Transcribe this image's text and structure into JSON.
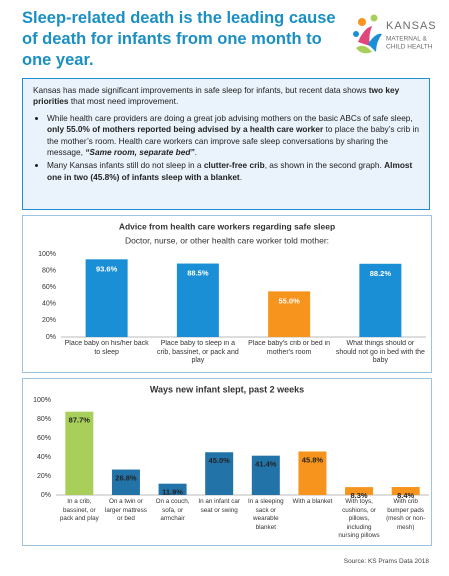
{
  "header": {
    "title": "Sleep-related death is the leading cause of death for infants from one month to one year.",
    "logo": {
      "name": "KANSAS",
      "lines": [
        "MATERNAL &",
        "CHILD HEALTH"
      ]
    }
  },
  "intro": {
    "paragraph": [
      {
        "text": "Kansas has made significant improvements in safe sleep for infants, but recent data shows "
      },
      {
        "text": "two key priorities",
        "bold": true
      },
      {
        "text": " that most need improvement."
      }
    ],
    "bullets": [
      [
        {
          "text": "While health care providers are doing a great job advising mothers on the basic ABCs of safe sleep, "
        },
        {
          "text": "only 55.0% of mothers reported being advised by a health care worker",
          "bold": true
        },
        {
          "text": " to place the baby’s crib in the mother’s room. Health care workers can improve safe sleep conversations by sharing the message, "
        },
        {
          "text": "“Same room, separate bed”",
          "bold": true,
          "italic": true
        },
        {
          "text": "."
        }
      ],
      [
        {
          "text": "Many Kansas infants still do not sleep in a "
        },
        {
          "text": "clutter-free crib",
          "bold": true
        },
        {
          "text": ", as shown in the second graph. "
        },
        {
          "text": "Almost one in two (45.8%) of infants sleep with a blanket",
          "bold": true
        },
        {
          "text": "."
        }
      ]
    ]
  },
  "chart_data": [
    {
      "type": "bar",
      "title": "Advice from health care workers regarding safe sleep",
      "subtitle": "Doctor, nurse, or other health care worker told mother:",
      "categories": [
        "Place baby on his/her back to sleep",
        "Place baby to sleep in a crib, bassinet, or pack and play",
        "Place baby's crib or bed in mother's room",
        "What things should or should not go in bed with the baby"
      ],
      "values": [
        93.6,
        88.5,
        55.0,
        88.2
      ],
      "value_labels": [
        "93.6%",
        "88.5%",
        "55.0%",
        "88.2%"
      ],
      "colors": [
        "#1b8fd6",
        "#1b8fd6",
        "#f7941d",
        "#1b8fd6"
      ],
      "ylim": [
        0,
        100
      ],
      "yticks": [
        {
          "value": 0,
          "label": "0%"
        },
        {
          "value": 20,
          "label": "20%"
        },
        {
          "value": 40,
          "label": "40%"
        },
        {
          "value": 60,
          "label": "60%"
        },
        {
          "value": 80,
          "label": "80%"
        },
        {
          "value": 100,
          "label": "100%"
        }
      ],
      "grid": false
    },
    {
      "type": "bar",
      "title": "Ways new infant slept, past 2 weeks",
      "categories": [
        "In a crib, bassinet, or pack and play",
        "On a twin or larger mattress or bed",
        "On a couch, sofa, or armchair",
        "In an infant car seat or swing",
        "In a sleeping sack or wearable blanket",
        "With a blanket",
        "With toys, cushions, or pillows, including nursing pillows",
        "With crib bumper pads (mesh or non-mesh)"
      ],
      "values": [
        87.7,
        26.8,
        11.9,
        45.0,
        41.4,
        45.8,
        8.3,
        8.4
      ],
      "value_labels": [
        "87.7%",
        "26.8%",
        "11.9%",
        "45.0%",
        "41.4%",
        "45.8%",
        "8.3%",
        "8.4%"
      ],
      "colors": [
        "#a8cf5a",
        "#2273a8",
        "#2273a8",
        "#2273a8",
        "#2273a8",
        "#f7941d",
        "#f7941d",
        "#f7941d"
      ],
      "ylim": [
        0,
        100
      ],
      "yticks": [
        {
          "value": 0,
          "label": "0%"
        },
        {
          "value": 20,
          "label": "20%"
        },
        {
          "value": 40,
          "label": "40%"
        },
        {
          "value": 60,
          "label": "60%"
        },
        {
          "value": 80,
          "label": "80%"
        },
        {
          "value": 100,
          "label": "100%"
        }
      ],
      "grid": false
    }
  ],
  "source": "Source: KS Prams Data 2018"
}
